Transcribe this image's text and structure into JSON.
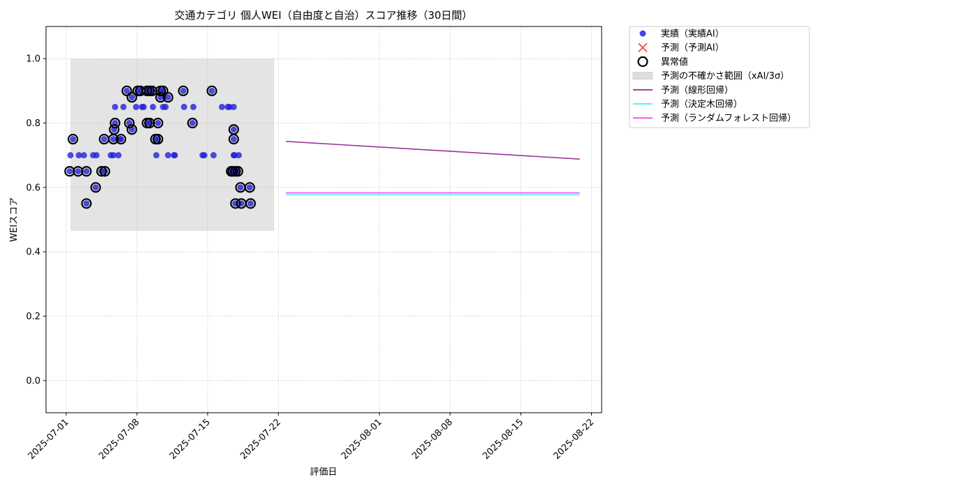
{
  "chart_data": {
    "type": "scatter",
    "title": "交通カテゴリ 個人WEI（自由度と自治）スコア推移（30日間）",
    "xlabel": "評価日",
    "ylabel": "WEIスコア",
    "xlim": [
      "2025-06-29",
      "2025-08-23"
    ],
    "ylim": [
      -0.1,
      1.1
    ],
    "grid": true,
    "legend_position": "outside-top-right",
    "x_ticks": [
      "2025-07-01",
      "2025-07-08",
      "2025-07-15",
      "2025-07-22",
      "2025-08-01",
      "2025-08-08",
      "2025-08-15",
      "2025-08-22"
    ],
    "y_ticks": [
      0.0,
      0.2,
      0.4,
      0.6,
      0.8,
      1.0
    ],
    "y_tick_labels": [
      "0.0",
      "0.2",
      "0.4",
      "0.6",
      "0.8",
      "1.0"
    ],
    "uncertainty_band": {
      "name": "予測の不確かさ範囲（xAI/3σ）",
      "x_start": "2025-07-01 10:00",
      "x_end": "2025-07-21 14:00",
      "y_low": 0.465,
      "y_high": 1.0,
      "color": "#cccccc"
    },
    "series": [
      {
        "name": "実績（実績AI）",
        "kind": "scatter",
        "color": "#2222dd",
        "points": [
          [
            "2025-07-01 08:00",
            0.65
          ],
          [
            "2025-07-01 10:00",
            0.7
          ],
          [
            "2025-07-01 16:00",
            0.75
          ],
          [
            "2025-07-02 04:00",
            0.65
          ],
          [
            "2025-07-02 06:00",
            0.7
          ],
          [
            "2025-07-02 18:00",
            0.7
          ],
          [
            "2025-07-03 00:00",
            0.55
          ],
          [
            "2025-07-03 00:00",
            0.65
          ],
          [
            "2025-07-03 16:00",
            0.7
          ],
          [
            "2025-07-03 22:00",
            0.6
          ],
          [
            "2025-07-04 00:00",
            0.7
          ],
          [
            "2025-07-04 12:00",
            0.65
          ],
          [
            "2025-07-04 18:00",
            0.75
          ],
          [
            "2025-07-04 20:00",
            0.65
          ],
          [
            "2025-07-05 10:00",
            0.7
          ],
          [
            "2025-07-05 16:00",
            0.75
          ],
          [
            "2025-07-05 16:00",
            0.7
          ],
          [
            "2025-07-05 18:00",
            0.78
          ],
          [
            "2025-07-05 20:00",
            0.8
          ],
          [
            "2025-07-05 20:00",
            0.85
          ],
          [
            "2025-07-06 04:00",
            0.7
          ],
          [
            "2025-07-06 08:00",
            0.75
          ],
          [
            "2025-07-06 10:00",
            0.75
          ],
          [
            "2025-07-06 16:00",
            0.85
          ],
          [
            "2025-07-07 00:00",
            0.9
          ],
          [
            "2025-07-07 06:00",
            0.8
          ],
          [
            "2025-07-07 12:00",
            0.88
          ],
          [
            "2025-07-07 12:00",
            0.78
          ],
          [
            "2025-07-07 22:00",
            0.85
          ],
          [
            "2025-07-08 02:00",
            0.9
          ],
          [
            "2025-07-08 08:00",
            0.9
          ],
          [
            "2025-07-08 12:00",
            0.85
          ],
          [
            "2025-07-08 16:00",
            0.85
          ],
          [
            "2025-07-09 00:00",
            0.9
          ],
          [
            "2025-07-09 00:00",
            0.8
          ],
          [
            "2025-07-09 06:00",
            0.8
          ],
          [
            "2025-07-09 06:00",
            0.9
          ],
          [
            "2025-07-09 12:00",
            0.9
          ],
          [
            "2025-07-09 14:00",
            0.85
          ],
          [
            "2025-07-09 20:00",
            0.75
          ],
          [
            "2025-07-09 22:00",
            0.7
          ],
          [
            "2025-07-10 02:00",
            0.8
          ],
          [
            "2025-07-10 02:00",
            0.75
          ],
          [
            "2025-07-10 08:00",
            0.88
          ],
          [
            "2025-07-10 08:00",
            0.9
          ],
          [
            "2025-07-10 14:00",
            0.9
          ],
          [
            "2025-07-10 14:00",
            0.85
          ],
          [
            "2025-07-10 20:00",
            0.85
          ],
          [
            "2025-07-11 02:00",
            0.88
          ],
          [
            "2025-07-11 02:00",
            0.7
          ],
          [
            "2025-07-11 16:00",
            0.7
          ],
          [
            "2025-07-11 18:00",
            0.7
          ],
          [
            "2025-07-12 14:00",
            0.9
          ],
          [
            "2025-07-12 16:00",
            0.85
          ],
          [
            "2025-07-13 12:00",
            0.8
          ],
          [
            "2025-07-13 14:00",
            0.85
          ],
          [
            "2025-07-14 12:00",
            0.7
          ],
          [
            "2025-07-14 16:00",
            0.7
          ],
          [
            "2025-07-15 10:00",
            0.9
          ],
          [
            "2025-07-15 14:00",
            0.7
          ],
          [
            "2025-07-16 10:00",
            0.85
          ],
          [
            "2025-07-17 00:00",
            0.85
          ],
          [
            "2025-07-17 04:00",
            0.85
          ],
          [
            "2025-07-17 08:00",
            0.65
          ],
          [
            "2025-07-17 12:00",
            0.65
          ],
          [
            "2025-07-17 14:00",
            0.7
          ],
          [
            "2025-07-17 14:00",
            0.75
          ],
          [
            "2025-07-17 14:00",
            0.78
          ],
          [
            "2025-07-17 14:00",
            0.85
          ],
          [
            "2025-07-17 16:00",
            0.7
          ],
          [
            "2025-07-17 18:00",
            0.55
          ],
          [
            "2025-07-17 18:00",
            0.65
          ],
          [
            "2025-07-18 00:00",
            0.65
          ],
          [
            "2025-07-18 02:00",
            0.7
          ],
          [
            "2025-07-18 06:00",
            0.6
          ],
          [
            "2025-07-18 08:00",
            0.55
          ],
          [
            "2025-07-19 04:00",
            0.6
          ],
          [
            "2025-07-19 06:00",
            0.55
          ]
        ]
      },
      {
        "name": "予測（予測AI）",
        "kind": "x-marker",
        "color": "#ff4444",
        "points": []
      },
      {
        "name": "異常値",
        "kind": "ring",
        "color": "#000000",
        "points": [
          [
            "2025-07-01 08:00",
            0.65
          ],
          [
            "2025-07-01 16:00",
            0.75
          ],
          [
            "2025-07-02 04:00",
            0.65
          ],
          [
            "2025-07-03 00:00",
            0.55
          ],
          [
            "2025-07-03 00:00",
            0.65
          ],
          [
            "2025-07-03 22:00",
            0.6
          ],
          [
            "2025-07-04 12:00",
            0.65
          ],
          [
            "2025-07-04 20:00",
            0.65
          ],
          [
            "2025-07-04 18:00",
            0.75
          ],
          [
            "2025-07-05 16:00",
            0.75
          ],
          [
            "2025-07-05 18:00",
            0.78
          ],
          [
            "2025-07-05 20:00",
            0.8
          ],
          [
            "2025-07-06 10:00",
            0.75
          ],
          [
            "2025-07-07 00:00",
            0.9
          ],
          [
            "2025-07-07 06:00",
            0.8
          ],
          [
            "2025-07-07 12:00",
            0.88
          ],
          [
            "2025-07-07 12:00",
            0.78
          ],
          [
            "2025-07-08 02:00",
            0.9
          ],
          [
            "2025-07-08 08:00",
            0.9
          ],
          [
            "2025-07-09 00:00",
            0.9
          ],
          [
            "2025-07-09 00:00",
            0.8
          ],
          [
            "2025-07-09 06:00",
            0.8
          ],
          [
            "2025-07-09 06:00",
            0.9
          ],
          [
            "2025-07-09 12:00",
            0.9
          ],
          [
            "2025-07-09 20:00",
            0.75
          ],
          [
            "2025-07-10 02:00",
            0.8
          ],
          [
            "2025-07-10 02:00",
            0.75
          ],
          [
            "2025-07-10 08:00",
            0.88
          ],
          [
            "2025-07-10 08:00",
            0.9
          ],
          [
            "2025-07-10 14:00",
            0.9
          ],
          [
            "2025-07-11 02:00",
            0.88
          ],
          [
            "2025-07-12 14:00",
            0.9
          ],
          [
            "2025-07-13 12:00",
            0.8
          ],
          [
            "2025-07-15 10:00",
            0.9
          ],
          [
            "2025-07-17 08:00",
            0.65
          ],
          [
            "2025-07-17 12:00",
            0.65
          ],
          [
            "2025-07-17 14:00",
            0.75
          ],
          [
            "2025-07-17 14:00",
            0.78
          ],
          [
            "2025-07-17 18:00",
            0.55
          ],
          [
            "2025-07-17 18:00",
            0.65
          ],
          [
            "2025-07-18 00:00",
            0.65
          ],
          [
            "2025-07-18 06:00",
            0.6
          ],
          [
            "2025-07-18 08:00",
            0.55
          ],
          [
            "2025-07-19 04:00",
            0.6
          ],
          [
            "2025-07-19 06:00",
            0.55
          ]
        ]
      },
      {
        "name": "予測（線形回帰）",
        "kind": "line",
        "color": "#993399",
        "points": [
          [
            "2025-07-22 18:00",
            0.743
          ],
          [
            "2025-08-20 20:00",
            0.688
          ]
        ]
      },
      {
        "name": "予測（決定木回帰）",
        "kind": "line",
        "color": "#44eeee",
        "points": [
          [
            "2025-07-22 18:00",
            0.577
          ],
          [
            "2025-08-20 20:00",
            0.577
          ]
        ]
      },
      {
        "name": "予測（ランダムフォレスト回帰）",
        "kind": "line",
        "color": "#ff44ff",
        "points": [
          [
            "2025-07-22 18:00",
            0.583
          ],
          [
            "2025-08-20 20:00",
            0.583
          ]
        ]
      }
    ],
    "legend": [
      {
        "label": "実績（実績AI）",
        "marker": "dot",
        "color": "#4444ee"
      },
      {
        "label": "予測（予測AI）",
        "marker": "x",
        "color": "#ff4444"
      },
      {
        "label": "異常値",
        "marker": "ring",
        "color": "#000000"
      },
      {
        "label": "予測の不確かさ範囲（xAI/3σ）",
        "marker": "box",
        "color": "#dddddd"
      },
      {
        "label": "予測（線形回帰）",
        "marker": "line",
        "color": "#993399"
      },
      {
        "label": "予測（決定木回帰）",
        "marker": "line",
        "color": "#44eeee"
      },
      {
        "label": "予測（ランダムフォレスト回帰）",
        "marker": "line",
        "color": "#ff44ff"
      }
    ]
  }
}
